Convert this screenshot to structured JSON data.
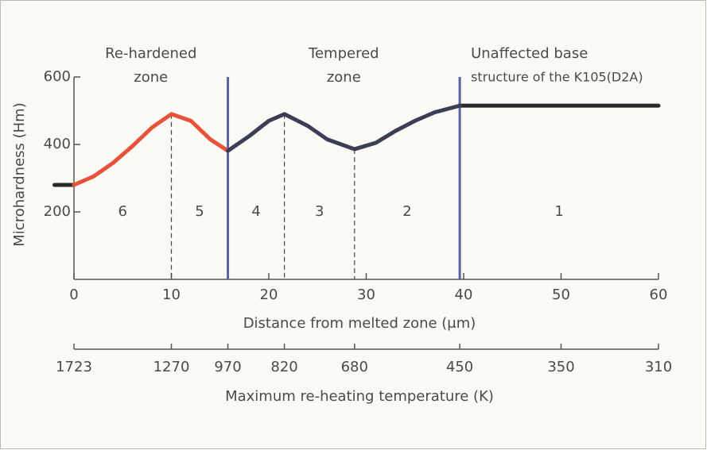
{
  "chart_data": {
    "type": "line",
    "xlabel": "Distance from melted zone (μm)",
    "ylabel": "Microhardness (Hm)",
    "xlim": [
      0,
      60
    ],
    "xticks": [
      0,
      10,
      20,
      30,
      40,
      50,
      60
    ],
    "ylim": [
      0,
      600
    ],
    "yticks": [
      200,
      400,
      600
    ],
    "x": [
      -2,
      0,
      2,
      4,
      6,
      8,
      10,
      12,
      14,
      15.8,
      18,
      20,
      21.6,
      24,
      26,
      28.8,
      31,
      33,
      35,
      37,
      39.6,
      45,
      50,
      55,
      60
    ],
    "series": [
      {
        "color": "#2a2a2a",
        "values": [
          280,
          280,
          null,
          null,
          null,
          null,
          null,
          null,
          null,
          null,
          null,
          null,
          null,
          null,
          null,
          null,
          null,
          null,
          null,
          null,
          515,
          515,
          515,
          515,
          515
        ]
      },
      {
        "color": "#e8513a",
        "values": [
          null,
          280,
          305,
          345,
          395,
          450,
          490,
          470,
          415,
          381,
          null,
          null,
          null,
          null,
          null,
          null,
          null,
          null,
          null,
          null,
          null,
          null,
          null,
          null,
          null
        ]
      },
      {
        "color": "#3b3f55",
        "values": [
          null,
          null,
          null,
          null,
          null,
          null,
          null,
          null,
          null,
          381,
          425,
          470,
          490,
          455,
          415,
          386,
          405,
          440,
          470,
          495,
          515,
          null,
          null,
          null,
          null
        ]
      }
    ],
    "dividers": [
      {
        "x": 10,
        "style": "dashed",
        "from": 490
      },
      {
        "x": 15.8,
        "style": "solid"
      },
      {
        "x": 21.6,
        "style": "dashed",
        "from": 490
      },
      {
        "x": 28.8,
        "style": "dashed",
        "from": 386
      },
      {
        "x": 39.6,
        "style": "solid"
      }
    ],
    "zone_numbers": [
      "6",
      "5",
      "4",
      "3",
      "2",
      "1"
    ],
    "regions": [
      {
        "title": [
          "Re-hardened",
          "zone"
        ]
      },
      {
        "title": [
          "Tempered",
          "zone"
        ]
      },
      {
        "title": [
          "Unaffected base",
          "structure of the K105(D2A)"
        ]
      }
    ],
    "temperature_axis": {
      "label": "Maximum re-heating temperature (K)",
      "ticks": [
        {
          "x": 0,
          "value": 1723
        },
        {
          "x": 10,
          "value": 1270
        },
        {
          "x": 15.8,
          "value": 970
        },
        {
          "x": 21.6,
          "value": 820
        },
        {
          "x": 28.8,
          "value": 680
        },
        {
          "x": 39.6,
          "value": 450
        },
        {
          "x": 50,
          "value": 350
        },
        {
          "x": 60,
          "value": 310
        }
      ]
    }
  }
}
